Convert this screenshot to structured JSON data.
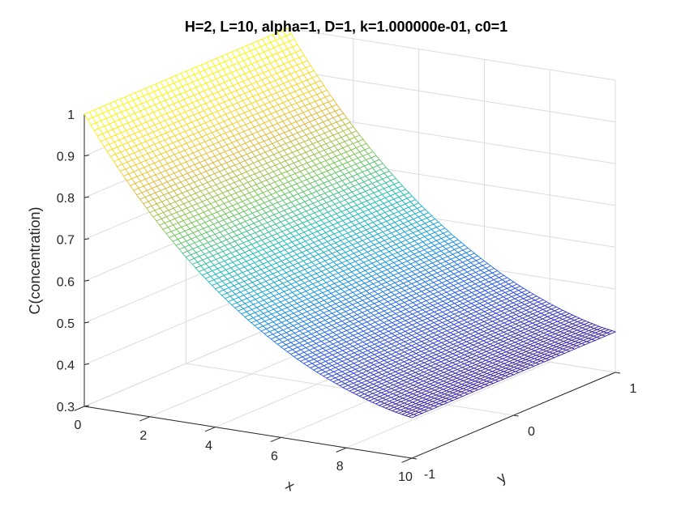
{
  "chart_data": {
    "type": "surface",
    "title": "H=2, L=10, alpha=1, D=1, k=1.000000e-01, c0=1",
    "xlabel": "x",
    "ylabel": "y",
    "zlabel": "C(concentration)",
    "xlim": [
      0,
      10
    ],
    "ylim": [
      -1,
      1
    ],
    "zlim": [
      0.3,
      1
    ],
    "xticks": [
      "0",
      "2",
      "4",
      "6",
      "8",
      "10"
    ],
    "yticks": [
      "-1",
      "0",
      "1"
    ],
    "zticks": [
      "0.3",
      "0.4",
      "0.5",
      "0.6",
      "0.7",
      "0.8",
      "0.9",
      "1"
    ],
    "grid": true,
    "colormap": "parula",
    "colormap_stops": [
      "#3e26a8",
      "#2f5bf1",
      "#1b9ae2",
      "#1fbfb6",
      "#7ac657",
      "#e1b939",
      "#f8e11f",
      "#f9fb0e"
    ],
    "surface": {
      "x": [
        0,
        0.5,
        1,
        1.5,
        2,
        2.5,
        3,
        3.5,
        4,
        4.5,
        5,
        5.5,
        6,
        6.5,
        7,
        7.5,
        8,
        8.5,
        9,
        9.5,
        10
      ],
      "z_along_x": [
        1.0,
        0.941,
        0.887,
        0.836,
        0.789,
        0.745,
        0.704,
        0.666,
        0.631,
        0.599,
        0.569,
        0.542,
        0.517,
        0.494,
        0.474,
        0.456,
        0.44,
        0.426,
        0.414,
        0.404,
        0.397
      ],
      "y_range": [
        -1,
        1
      ],
      "note_constant_in_y": true
    }
  }
}
